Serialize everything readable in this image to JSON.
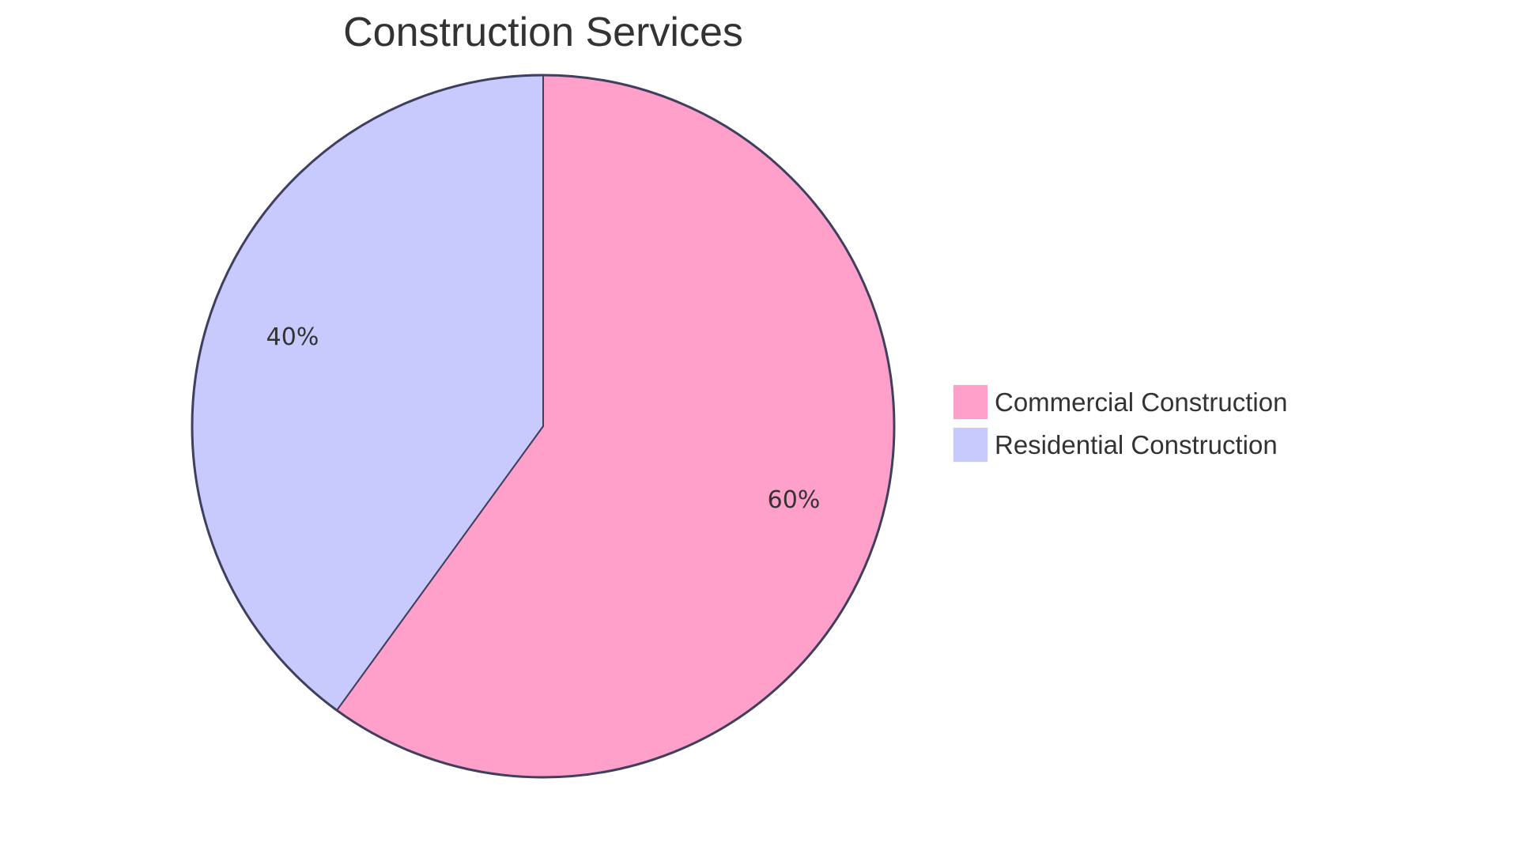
{
  "chart_data": {
    "type": "pie",
    "title": "Construction Services",
    "categories": [
      "Commercial Construction",
      "Residential Construction"
    ],
    "values": [
      60,
      40
    ],
    "labels": [
      "60%",
      "40%"
    ],
    "colors": [
      "#ffa0cb",
      "#c8c9fd"
    ],
    "stroke_color": "#3f3f5e",
    "legend_position": "right",
    "start_angle_deg": 0,
    "direction": "clockwise"
  },
  "title": "Construction Services",
  "slices": [
    {
      "name": "Commercial Construction",
      "label": "60%",
      "color": "#ffa0cb"
    },
    {
      "name": "Residential Construction",
      "label": "40%",
      "color": "#c8c9fd"
    }
  ],
  "legend": {
    "items": [
      {
        "label": "Commercial Construction",
        "color": "#ffa0cb"
      },
      {
        "label": "Residential Construction",
        "color": "#c8c9fd"
      }
    ]
  }
}
